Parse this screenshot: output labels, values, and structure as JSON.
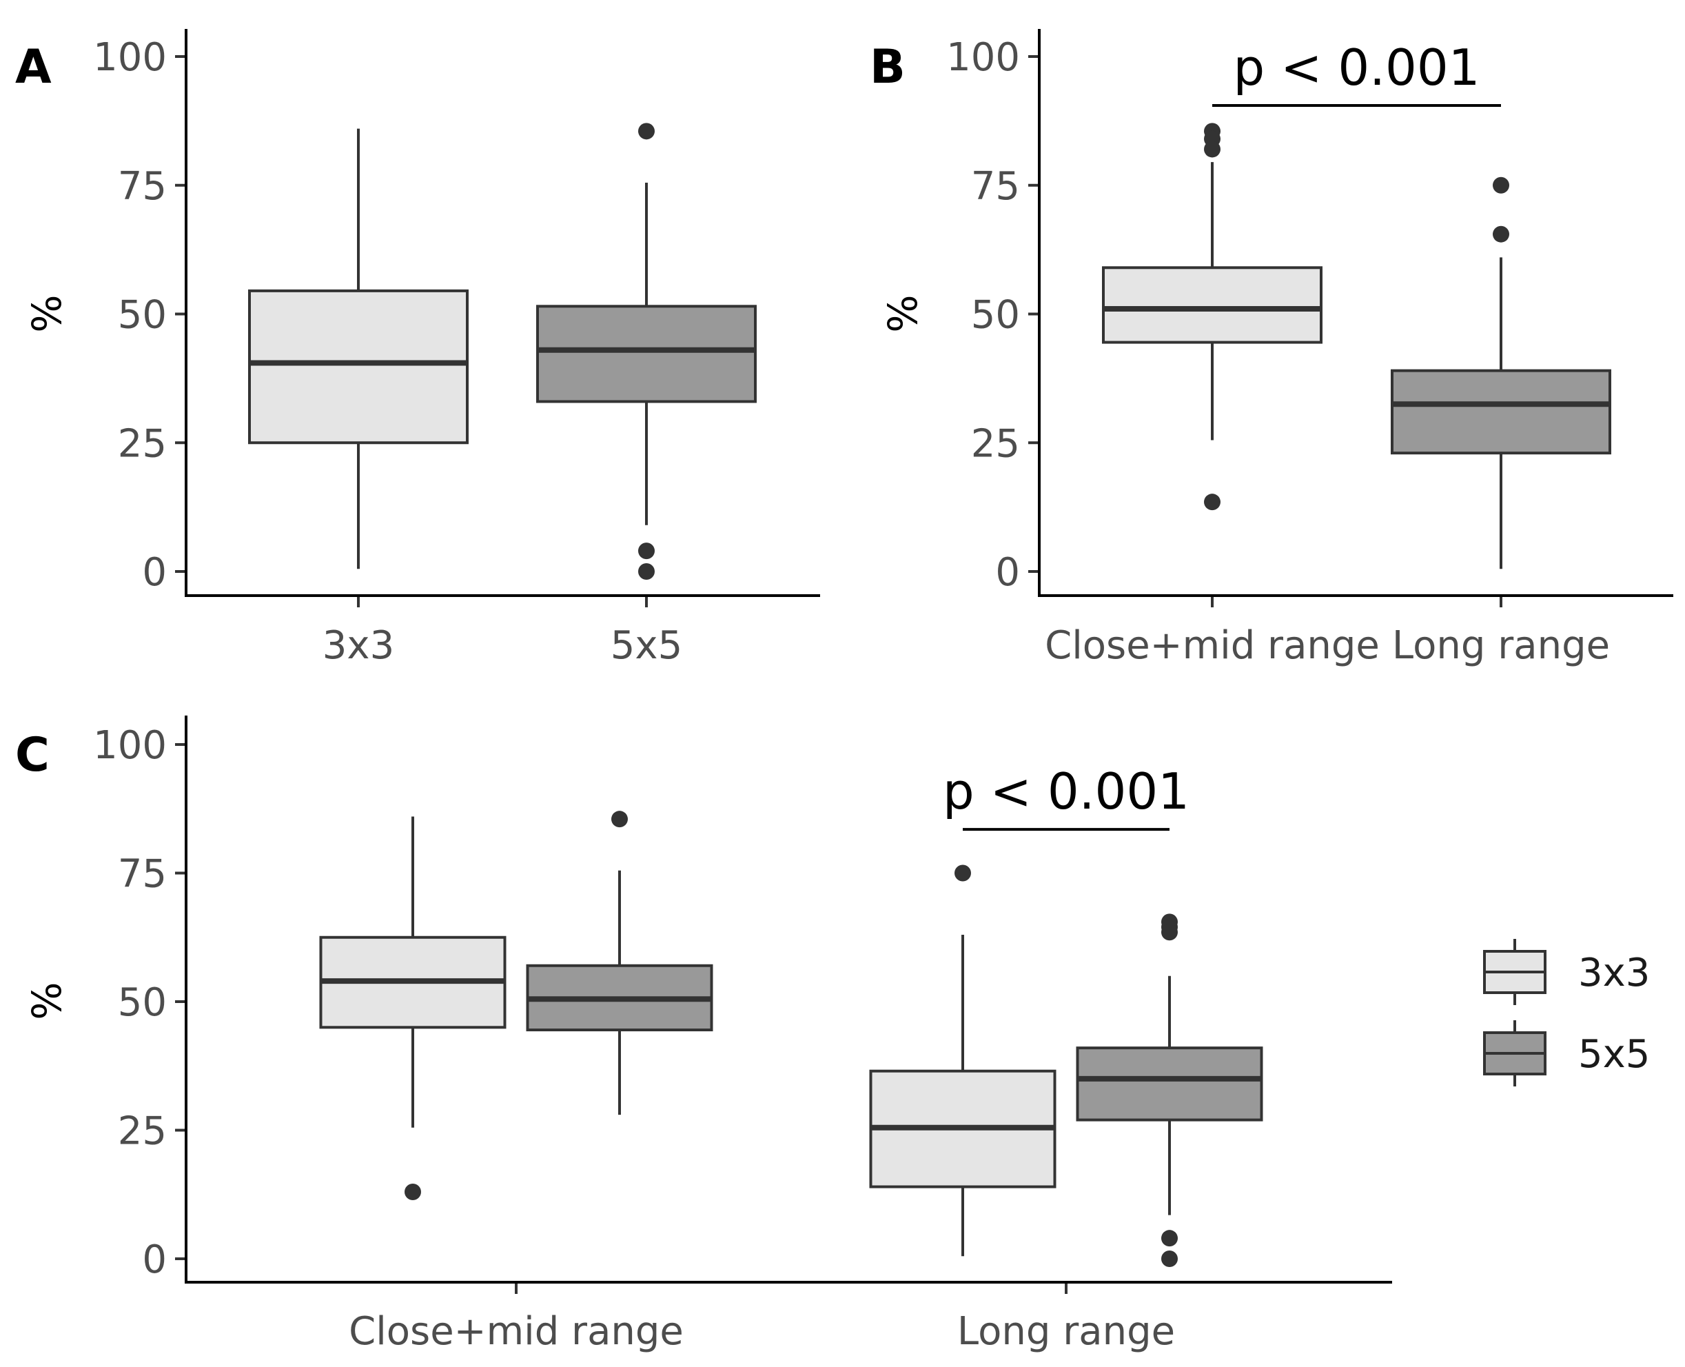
{
  "chart_data": [
    {
      "id": "A",
      "panel_label": "A",
      "type": "boxplot",
      "ylabel": "%",
      "ylim": [
        0,
        100
      ],
      "yticks": [
        "0",
        "25",
        "50",
        "75",
        "100"
      ],
      "categories": [
        "3x3",
        "5x5"
      ],
      "boxes": [
        {
          "category": "3x3",
          "group": "3x3",
          "min": 0.5,
          "q1": 25,
          "median": 40.5,
          "q3": 54.5,
          "max": 86,
          "outliers": []
        },
        {
          "category": "5x5",
          "group": "5x5",
          "min": 9,
          "q1": 33,
          "median": 43,
          "q3": 51.5,
          "max": 75.5,
          "outliers": [
            85.5,
            4,
            0
          ]
        }
      ],
      "annotation": null
    },
    {
      "id": "B",
      "panel_label": "B",
      "type": "boxplot",
      "ylabel": "%",
      "ylim": [
        0,
        100
      ],
      "yticks": [
        "0",
        "25",
        "50",
        "75",
        "100"
      ],
      "categories": [
        "Close+mid range",
        "Long range"
      ],
      "boxes": [
        {
          "category": "Close+mid range",
          "group": "3x3",
          "min": 25.5,
          "q1": 44.5,
          "median": 51,
          "q3": 59,
          "max": 79.5,
          "outliers": [
            85.5,
            84,
            82,
            13.5
          ]
        },
        {
          "category": "Long range",
          "group": "5x5",
          "min": 0.5,
          "q1": 23,
          "median": 32.5,
          "q3": 39,
          "max": 61,
          "outliers": [
            75,
            65.5
          ]
        }
      ],
      "annotation": {
        "text": "p < 0.001",
        "from": "Close+mid range",
        "to": "Long range",
        "y": 90.5
      }
    },
    {
      "id": "C",
      "panel_label": "C",
      "type": "boxplot",
      "ylabel": "%",
      "ylim": [
        0,
        100
      ],
      "yticks": [
        "0",
        "25",
        "50",
        "75",
        "100"
      ],
      "categories": [
        "Close+mid range",
        "Long range"
      ],
      "boxes": [
        {
          "category": "Close+mid range",
          "group": "3x3",
          "min": 25.5,
          "q1": 45,
          "median": 54,
          "q3": 62.5,
          "max": 86,
          "outliers": [
            13
          ]
        },
        {
          "category": "Close+mid range",
          "group": "5x5",
          "min": 28,
          "q1": 44.5,
          "median": 50.5,
          "q3": 57,
          "max": 75.5,
          "outliers": [
            85.5
          ]
        },
        {
          "category": "Long range",
          "group": "3x3",
          "min": 0.5,
          "q1": 14,
          "median": 25.5,
          "q3": 36.5,
          "max": 63,
          "outliers": [
            75
          ]
        },
        {
          "category": "Long range",
          "group": "5x5",
          "min": 8.5,
          "q1": 27,
          "median": 35,
          "q3": 41,
          "max": 55,
          "outliers": [
            65.5,
            64.5,
            63.5,
            4,
            0
          ]
        }
      ],
      "annotation": {
        "text": "p < 0.001",
        "from_group": "3x3",
        "to_group": "5x5",
        "category": "Long range",
        "y": 83.5
      },
      "legend": [
        {
          "label": "3x3",
          "group": "3x3"
        },
        {
          "label": "5x5",
          "group": "5x5"
        }
      ]
    }
  ],
  "colors": {
    "3x3": "#e5e5e5",
    "5x5": "#999999",
    "line": "#333333",
    "axis": "#000000"
  }
}
